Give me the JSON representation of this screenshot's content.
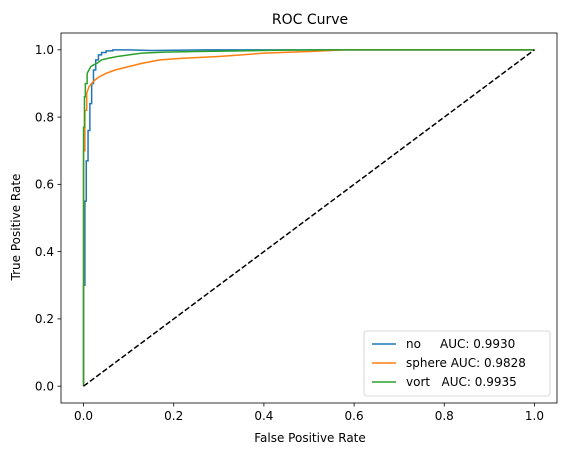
{
  "chart_data": {
    "type": "line",
    "title": "ROC Curve",
    "xlabel": "False Positive Rate",
    "ylabel": "True Positive Rate",
    "xlim": [
      -0.05,
      1.05
    ],
    "ylim": [
      -0.05,
      1.05
    ],
    "x_ticks": [
      0.0,
      0.2,
      0.4,
      0.6,
      0.8,
      1.0
    ],
    "y_ticks": [
      0.0,
      0.2,
      0.4,
      0.6,
      0.8,
      1.0
    ],
    "x_tick_labels": [
      "0.0",
      "0.2",
      "0.4",
      "0.6",
      "0.8",
      "1.0"
    ],
    "y_tick_labels": [
      "0.0",
      "0.2",
      "0.4",
      "0.6",
      "0.8",
      "1.0"
    ],
    "grid": false,
    "legend_position": "lower-right",
    "series": [
      {
        "name": "no     AUC: 0.9930",
        "color": "#1f77b4",
        "x": [
          0.0,
          0.0,
          0.003,
          0.003,
          0.006,
          0.006,
          0.01,
          0.01,
          0.014,
          0.014,
          0.018,
          0.018,
          0.022,
          0.022,
          0.027,
          0.027,
          0.033,
          0.033,
          0.04,
          0.04,
          0.05,
          0.05,
          0.065,
          0.065,
          0.1,
          0.15,
          0.27,
          1.0
        ],
        "y": [
          0.0,
          0.3,
          0.3,
          0.55,
          0.55,
          0.67,
          0.67,
          0.76,
          0.76,
          0.84,
          0.84,
          0.9,
          0.9,
          0.94,
          0.94,
          0.97,
          0.97,
          0.985,
          0.985,
          0.992,
          0.992,
          0.997,
          0.997,
          1.0,
          1.0,
          0.998,
          1.0,
          1.0
        ]
      },
      {
        "name": "sphere AUC: 0.9828",
        "color": "#ff7f0e",
        "x": [
          0.0,
          0.0,
          0.003,
          0.003,
          0.007,
          0.007,
          0.012,
          0.018,
          0.025,
          0.035,
          0.05,
          0.07,
          0.1,
          0.13,
          0.17,
          0.22,
          0.3,
          0.4,
          0.5,
          0.58,
          1.0
        ],
        "y": [
          0.0,
          0.7,
          0.7,
          0.82,
          0.82,
          0.87,
          0.89,
          0.9,
          0.91,
          0.92,
          0.93,
          0.94,
          0.95,
          0.96,
          0.97,
          0.975,
          0.98,
          0.99,
          0.995,
          1.0,
          1.0
        ]
      },
      {
        "name": "vort   AUC: 0.9935",
        "color": "#2ca02c",
        "x": [
          0.0,
          0.0,
          0.002,
          0.002,
          0.004,
          0.004,
          0.008,
          0.008,
          0.012,
          0.016,
          0.022,
          0.03,
          0.04,
          0.055,
          0.075,
          0.1,
          0.13,
          0.18,
          0.25,
          0.35,
          0.45,
          0.55,
          1.0
        ],
        "y": [
          0.0,
          0.77,
          0.77,
          0.86,
          0.86,
          0.9,
          0.9,
          0.93,
          0.94,
          0.95,
          0.955,
          0.96,
          0.97,
          0.975,
          0.98,
          0.985,
          0.99,
          0.993,
          0.995,
          0.997,
          0.999,
          1.0,
          1.0
        ]
      },
      {
        "name": "",
        "color": "#000000",
        "dashed": true,
        "x": [
          0.0,
          1.0
        ],
        "y": [
          0.0,
          1.0
        ]
      }
    ]
  }
}
